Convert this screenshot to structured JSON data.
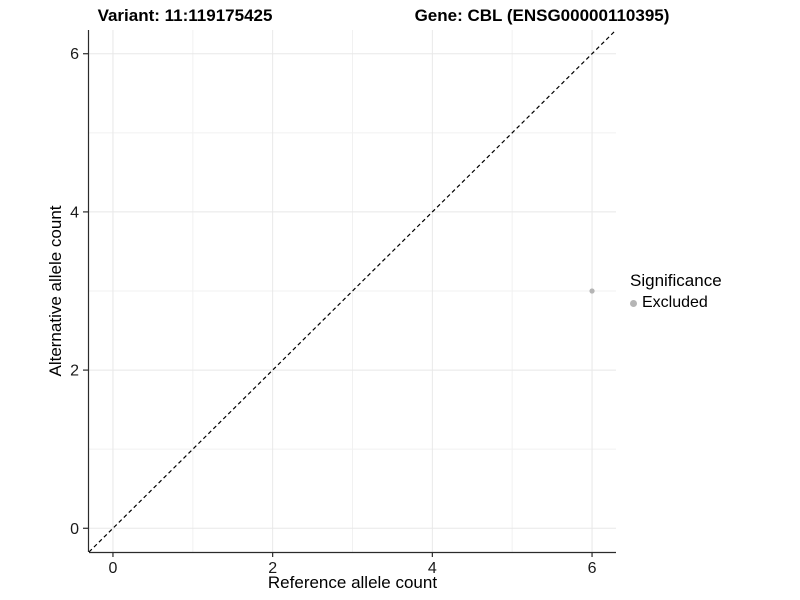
{
  "chart_data": {
    "type": "scatter",
    "title_left": "Variant: 11:119175425",
    "title_right": "Gene: CBL (ENSG00000110395)",
    "xlabel": "Reference allele count",
    "ylabel": "Alternative allele count",
    "xlim": [
      -0.3,
      6.3
    ],
    "ylim": [
      -0.3,
      6.3
    ],
    "x_ticks": [
      0,
      2,
      4,
      6
    ],
    "y_ticks": [
      0,
      2,
      4,
      6
    ],
    "x_minor": [
      1,
      3,
      5
    ],
    "y_minor": [
      1,
      3,
      5
    ],
    "grid": true,
    "reference_line": {
      "type": "identity",
      "style": "dashed",
      "color": "#000000"
    },
    "points": [
      {
        "x": 6,
        "y": 3,
        "series": "Excluded"
      }
    ],
    "legend": {
      "title": "Significance",
      "position": "right",
      "entries": [
        {
          "label": "Excluded",
          "color": "#b5b5b5"
        }
      ]
    }
  },
  "colors": {
    "background": "#ffffff",
    "major_grid": "#e8e8e8",
    "minor_grid": "#f1f1f1",
    "axis_line": "#2b2b2b",
    "tick_label": "#1a1a1a",
    "point": "#b5b5b5"
  }
}
